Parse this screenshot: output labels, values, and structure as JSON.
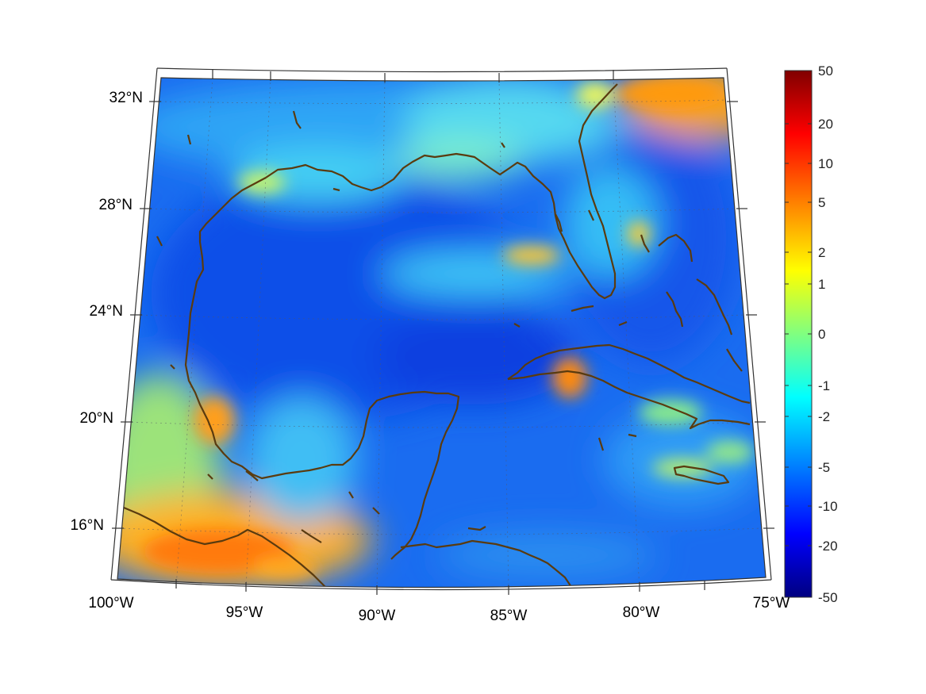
{
  "map": {
    "lat_labels": [
      "32°N",
      "28°N",
      "24°N",
      "20°N",
      "16°N"
    ],
    "lon_labels": [
      "100°W",
      "95°W",
      "90°W",
      "85°W",
      "80°W",
      "75°W"
    ],
    "extent": {
      "lon_min": -100,
      "lon_max": -75,
      "lat_min": 14,
      "lat_max": 33
    },
    "projection": "lambert-conformal",
    "grid": true,
    "coastline_color": "#5a3b0f"
  },
  "colorbar": {
    "tick_labels": [
      "50",
      "20",
      "10",
      "5",
      "2",
      "1",
      "0",
      "-1",
      "-2",
      "-5",
      "-10",
      "-20",
      "-50"
    ],
    "colormap": "jet",
    "scale": "symmetric-log",
    "placement": "right"
  }
}
